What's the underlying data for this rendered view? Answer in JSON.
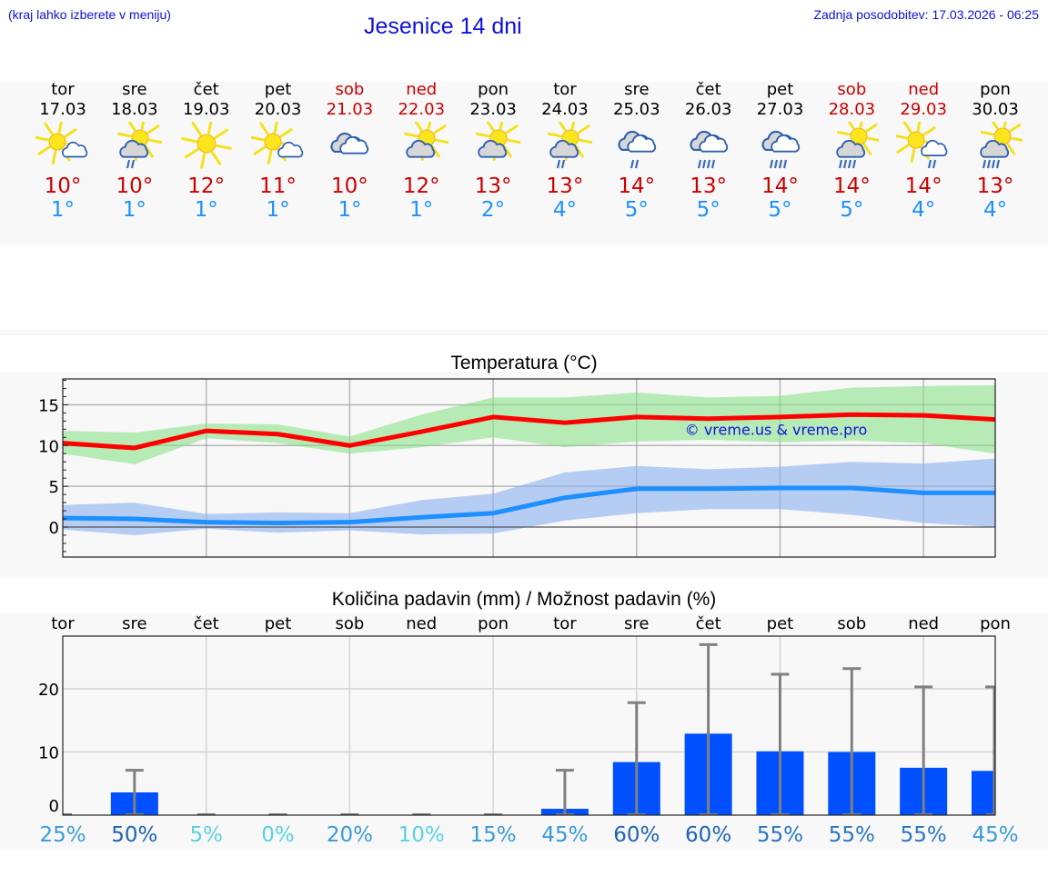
{
  "header": {
    "hint": "(kraj lahko izberete v meniju)",
    "title": "Jesenice 14 dni",
    "updated": "Zadnja posodobitev: 17.03.2026 - 06:25"
  },
  "colors": {
    "link_blue": "#1010e0",
    "weekend_red": "#cc0000",
    "tmax_red": "#cc0000",
    "tmin_blue": "#1e90ff",
    "tmax_line": "#ff0000",
    "tmax_band": "#aee9ae",
    "tmin_line": "#1e8fff",
    "tmin_band": "#aec8f2",
    "precip_bar": "#0050ff",
    "error_bar": "#808080"
  },
  "days": [
    {
      "name": "tor",
      "date": "17.03",
      "weekend": false,
      "icon": "sun-small-cloud",
      "tmax": "10°",
      "tmin": "1°"
    },
    {
      "name": "sre",
      "date": "18.03",
      "weekend": false,
      "icon": "sun-cloud-light-rain",
      "tmax": "10°",
      "tmin": "1°"
    },
    {
      "name": "čet",
      "date": "19.03",
      "weekend": false,
      "icon": "sun",
      "tmax": "12°",
      "tmin": "1°"
    },
    {
      "name": "pet",
      "date": "20.03",
      "weekend": false,
      "icon": "sun-small-cloud",
      "tmax": "11°",
      "tmin": "1°"
    },
    {
      "name": "sob",
      "date": "21.03",
      "weekend": true,
      "icon": "overcast",
      "tmax": "10°",
      "tmin": "1°"
    },
    {
      "name": "ned",
      "date": "22.03",
      "weekend": true,
      "icon": "sun-cloud",
      "tmax": "12°",
      "tmin": "1°"
    },
    {
      "name": "pon",
      "date": "23.03",
      "weekend": false,
      "icon": "sun-cloud",
      "tmax": "13°",
      "tmin": "2°"
    },
    {
      "name": "tor",
      "date": "24.03",
      "weekend": false,
      "icon": "sun-cloud-light-rain",
      "tmax": "13°",
      "tmin": "4°"
    },
    {
      "name": "sre",
      "date": "25.03",
      "weekend": false,
      "icon": "overcast-light-rain",
      "tmax": "14°",
      "tmin": "5°"
    },
    {
      "name": "čet",
      "date": "26.03",
      "weekend": false,
      "icon": "overcast-rain",
      "tmax": "13°",
      "tmin": "5°"
    },
    {
      "name": "pet",
      "date": "27.03",
      "weekend": false,
      "icon": "overcast-rain",
      "tmax": "14°",
      "tmin": "5°"
    },
    {
      "name": "sob",
      "date": "28.03",
      "weekend": true,
      "icon": "sun-cloud-rain",
      "tmax": "14°",
      "tmin": "5°"
    },
    {
      "name": "ned",
      "date": "29.03",
      "weekend": true,
      "icon": "sun-small-cloud-light-rain",
      "tmax": "14°",
      "tmin": "4°"
    },
    {
      "name": "pon",
      "date": "30.03",
      "weekend": false,
      "icon": "sun-cloud-rain",
      "tmax": "13°",
      "tmin": "4°"
    }
  ],
  "chart_data": [
    {
      "type": "line",
      "title": "Temperatura (°C)",
      "xlabel": "",
      "ylabel": "",
      "x": [
        "17.03",
        "18.03",
        "19.03",
        "20.03",
        "21.03",
        "22.03",
        "23.03",
        "24.03",
        "25.03",
        "26.03",
        "27.03",
        "28.03",
        "29.03",
        "30.03"
      ],
      "yticks": [
        0,
        5,
        10,
        15
      ],
      "ylim": [
        -3.7,
        18.3
      ],
      "grid": true,
      "series": [
        {
          "name": "Tmax",
          "color": "#ff0000",
          "values": [
            10.3,
            9.7,
            11.8,
            11.4,
            10.0,
            11.7,
            13.5,
            12.8,
            13.5,
            13.3,
            13.5,
            13.8,
            13.7,
            13.2
          ]
        },
        {
          "name": "Tmax range upper",
          "color": "#aee9ae",
          "values": [
            11.8,
            11.6,
            12.7,
            12.6,
            11.1,
            13.8,
            15.9,
            15.9,
            16.5,
            15.9,
            16.1,
            17.1,
            17.3,
            17.4
          ]
        },
        {
          "name": "Tmax range lower",
          "color": "#aee9ae",
          "values": [
            9.0,
            7.7,
            10.9,
            10.3,
            9.0,
            9.8,
            11.0,
            9.8,
            10.5,
            10.7,
            10.4,
            10.6,
            10.3,
            9.0
          ]
        },
        {
          "name": "Tmin",
          "color": "#1e8fff",
          "values": [
            1.1,
            1.0,
            0.6,
            0.5,
            0.6,
            1.2,
            1.7,
            3.6,
            4.7,
            4.7,
            4.8,
            4.8,
            4.2,
            4.2
          ]
        },
        {
          "name": "Tmin range upper",
          "color": "#aec8f2",
          "values": [
            2.7,
            3.0,
            1.6,
            1.8,
            1.7,
            3.3,
            4.1,
            6.7,
            7.5,
            7.1,
            7.4,
            8.0,
            7.8,
            8.4
          ]
        },
        {
          "name": "Tmin range lower",
          "color": "#aec8f2",
          "values": [
            -0.3,
            -1.0,
            -0.2,
            -0.7,
            -0.4,
            -0.9,
            -0.8,
            0.8,
            1.7,
            2.2,
            2.2,
            1.5,
            0.5,
            0.0
          ]
        }
      ],
      "annotation": "© vreme.us & vreme.pro"
    },
    {
      "type": "bar",
      "title": "Količina padavin (mm) / Možnost padavin (%)",
      "categories": [
        "tor",
        "sre",
        "čet",
        "pet",
        "sob",
        "ned",
        "pon",
        "tor",
        "sre",
        "čet",
        "pet",
        "sob",
        "ned",
        "pon"
      ],
      "yticks": [
        0,
        10,
        20
      ],
      "ylim": [
        0,
        28.5
      ],
      "grid": true,
      "series": [
        {
          "name": "Količina padavin (mm)",
          "color": "#0050ff",
          "values": [
            0,
            3.6,
            0,
            0,
            0,
            0,
            0,
            1.0,
            8.4,
            12.9,
            10.1,
            10.0,
            7.5,
            7.0
          ]
        },
        {
          "name": "Zgornja meja (mm)",
          "color": "#808080",
          "values": [
            0,
            7.1,
            0,
            0,
            0,
            0,
            0,
            7.1,
            17.8,
            27.0,
            22.3,
            23.2,
            20.3,
            20.3
          ]
        },
        {
          "name": "Možnost padavin (%)",
          "values": [
            "25%",
            "50%",
            "5%",
            "0%",
            "20%",
            "10%",
            "15%",
            "45%",
            "60%",
            "60%",
            "55%",
            "55%",
            "55%",
            "45%"
          ],
          "colors": [
            "#3a9ad9",
            "#1e64b4",
            "#5bd0e4",
            "#5bd0e4",
            "#3a9ad9",
            "#5bd0e4",
            "#3a9ad9",
            "#3a9ad9",
            "#1e64b4",
            "#1e64b4",
            "#2a76c4",
            "#2a76c4",
            "#2a76c4",
            "#3a9ad9"
          ]
        }
      ]
    }
  ]
}
